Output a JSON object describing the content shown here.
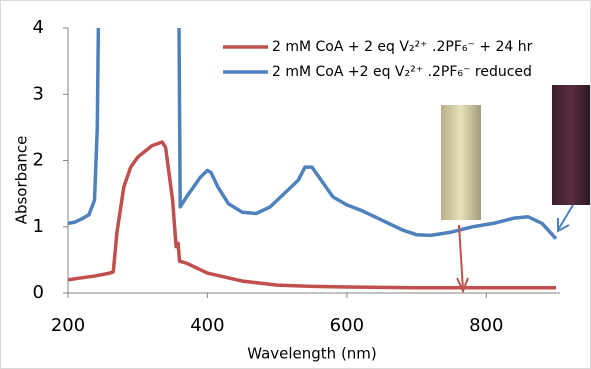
{
  "chart_data": {
    "type": "line",
    "xlabel": "Wavelength (nm)",
    "ylabel": "Absorbance",
    "xlim": [
      200,
      900
    ],
    "ylim": [
      0,
      4
    ],
    "xticks": [
      200,
      400,
      600,
      800
    ],
    "yticks": [
      0,
      1,
      2,
      3,
      4
    ],
    "grid": false,
    "legend": "upper right",
    "series": [
      {
        "name": "2 mM CoA + 2 eq V₂²⁺ .2PF₆⁻ + 24 hr",
        "color": "#c0504d",
        "x": [
          200,
          220,
          240,
          260,
          265,
          270,
          280,
          290,
          300,
          320,
          335,
          340,
          350,
          355,
          358,
          360,
          370,
          400,
          450,
          500,
          550,
          600,
          700,
          800,
          900
        ],
        "values": [
          0.2,
          0.23,
          0.26,
          0.3,
          0.32,
          0.9,
          1.6,
          1.9,
          2.05,
          2.22,
          2.28,
          2.2,
          1.4,
          0.7,
          0.75,
          0.48,
          0.45,
          0.3,
          0.18,
          0.12,
          0.1,
          0.09,
          0.08,
          0.08,
          0.08
        ]
      },
      {
        "name": "2 mM CoA +2 eq V₂²⁺ .2PF₆⁻ reduced",
        "color": "#4f81bd",
        "x": [
          200,
          210,
          220,
          230,
          238,
          242,
          244,
          359,
          361,
          370,
          380,
          390,
          400,
          405,
          415,
          430,
          450,
          470,
          490,
          510,
          530,
          540,
          550,
          560,
          580,
          600,
          620,
          650,
          680,
          700,
          720,
          750,
          780,
          810,
          840,
          860,
          880,
          900
        ],
        "values": [
          1.05,
          1.07,
          1.12,
          1.18,
          1.4,
          2.5,
          4.5,
          4.5,
          1.3,
          1.45,
          1.6,
          1.75,
          1.85,
          1.82,
          1.6,
          1.35,
          1.22,
          1.2,
          1.3,
          1.5,
          1.7,
          1.9,
          1.9,
          1.75,
          1.45,
          1.33,
          1.25,
          1.1,
          0.95,
          0.88,
          0.87,
          0.92,
          1.0,
          1.05,
          1.13,
          1.15,
          1.05,
          0.82
        ]
      }
    ]
  }
}
